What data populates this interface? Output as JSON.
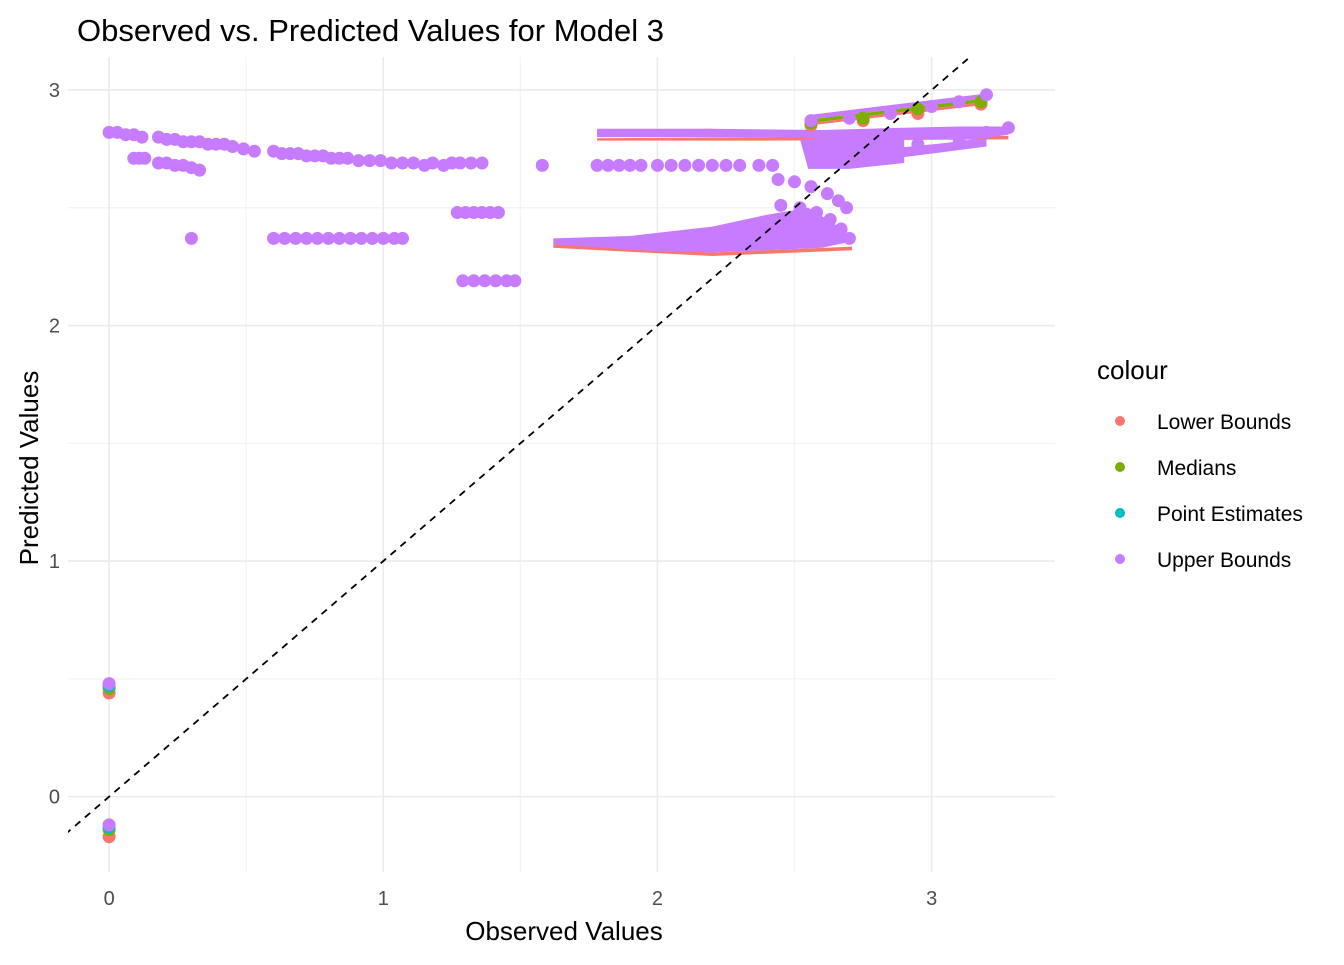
{
  "chart_data": {
    "type": "scatter",
    "title": "Observed vs. Predicted Values for Model 3",
    "xlabel": "Observed Values",
    "ylabel": "Predicted Values",
    "xlim": [
      -0.15,
      3.45
    ],
    "ylim": [
      -0.32,
      3.14
    ],
    "x_ticks": [
      0,
      1,
      2,
      3
    ],
    "y_ticks": [
      0,
      1,
      2,
      3
    ],
    "x_tick_labels": [
      "0",
      "1",
      "2",
      "3"
    ],
    "y_tick_labels": [
      "0",
      "1",
      "2",
      "3"
    ],
    "grid": true,
    "reference_line": {
      "type": "identity",
      "slope": 1,
      "intercept": 0,
      "style": "dashed",
      "color": "#000000"
    },
    "legend": {
      "title": "colour",
      "position": "right",
      "entries": [
        "Lower Bounds",
        "Medians",
        "Point Estimates",
        "Upper Bounds"
      ]
    },
    "series": [
      {
        "name": "Lower Bounds",
        "color": "#F8766D",
        "points": [
          [
            0.0,
            0.44
          ],
          [
            0.0,
            -0.17
          ],
          [
            2.56,
            2.85
          ],
          [
            2.75,
            2.87
          ],
          [
            2.95,
            2.9
          ],
          [
            3.18,
            2.94
          ]
        ]
      },
      {
        "name": "Medians",
        "color": "#7CAE00",
        "points": [
          [
            0.0,
            0.46
          ],
          [
            0.0,
            -0.14
          ],
          [
            2.56,
            2.86
          ],
          [
            2.75,
            2.88
          ],
          [
            2.95,
            2.92
          ],
          [
            3.18,
            2.95
          ]
        ]
      },
      {
        "name": "Point Estimates",
        "color": "#00BFC4",
        "points": [
          [
            0.0,
            0.47
          ],
          [
            0.0,
            -0.13
          ]
        ]
      },
      {
        "name": "Upper Bounds",
        "color": "#C77CFF",
        "points": [
          [
            0.0,
            0.48
          ],
          [
            0.0,
            -0.12
          ],
          [
            0.0,
            2.82
          ],
          [
            0.03,
            2.82
          ],
          [
            0.06,
            2.81
          ],
          [
            0.09,
            2.81
          ],
          [
            0.12,
            2.8
          ],
          [
            0.18,
            2.8
          ],
          [
            0.21,
            2.79
          ],
          [
            0.24,
            2.79
          ],
          [
            0.27,
            2.78
          ],
          [
            0.3,
            2.78
          ],
          [
            0.33,
            2.78
          ],
          [
            0.36,
            2.77
          ],
          [
            0.39,
            2.77
          ],
          [
            0.42,
            2.77
          ],
          [
            0.45,
            2.76
          ],
          [
            0.49,
            2.75
          ],
          [
            0.53,
            2.74
          ],
          [
            0.6,
            2.74
          ],
          [
            0.63,
            2.73
          ],
          [
            0.66,
            2.73
          ],
          [
            0.69,
            2.73
          ],
          [
            0.72,
            2.72
          ],
          [
            0.75,
            2.72
          ],
          [
            0.78,
            2.72
          ],
          [
            0.81,
            2.71
          ],
          [
            0.84,
            2.71
          ],
          [
            0.87,
            2.71
          ],
          [
            0.91,
            2.7
          ],
          [
            0.95,
            2.7
          ],
          [
            0.99,
            2.7
          ],
          [
            1.03,
            2.69
          ],
          [
            1.07,
            2.69
          ],
          [
            1.11,
            2.69
          ],
          [
            1.15,
            2.68
          ],
          [
            1.18,
            2.69
          ],
          [
            1.22,
            2.68
          ],
          [
            1.25,
            2.69
          ],
          [
            1.28,
            2.69
          ],
          [
            1.32,
            2.69
          ],
          [
            1.36,
            2.69
          ],
          [
            0.09,
            2.71
          ],
          [
            0.11,
            2.71
          ],
          [
            0.13,
            2.71
          ],
          [
            0.18,
            2.69
          ],
          [
            0.21,
            2.69
          ],
          [
            0.24,
            2.68
          ],
          [
            0.27,
            2.68
          ],
          [
            0.3,
            2.67
          ],
          [
            0.33,
            2.66
          ],
          [
            0.3,
            2.37
          ],
          [
            0.6,
            2.37
          ],
          [
            0.64,
            2.37
          ],
          [
            0.68,
            2.37
          ],
          [
            0.72,
            2.37
          ],
          [
            0.76,
            2.37
          ],
          [
            0.8,
            2.37
          ],
          [
            0.84,
            2.37
          ],
          [
            0.88,
            2.37
          ],
          [
            0.92,
            2.37
          ],
          [
            0.96,
            2.37
          ],
          [
            1.0,
            2.37
          ],
          [
            1.04,
            2.37
          ],
          [
            1.07,
            2.37
          ],
          [
            1.27,
            2.48
          ],
          [
            1.3,
            2.48
          ],
          [
            1.33,
            2.48
          ],
          [
            1.36,
            2.48
          ],
          [
            1.39,
            2.48
          ],
          [
            1.42,
            2.48
          ],
          [
            1.29,
            2.19
          ],
          [
            1.33,
            2.19
          ],
          [
            1.37,
            2.19
          ],
          [
            1.41,
            2.19
          ],
          [
            1.45,
            2.19
          ],
          [
            1.48,
            2.19
          ],
          [
            1.58,
            2.68
          ],
          [
            1.78,
            2.68
          ],
          [
            1.82,
            2.68
          ],
          [
            1.86,
            2.68
          ],
          [
            1.9,
            2.68
          ],
          [
            1.94,
            2.68
          ],
          [
            2.0,
            2.68
          ],
          [
            2.05,
            2.68
          ],
          [
            2.1,
            2.68
          ],
          [
            2.15,
            2.68
          ],
          [
            2.2,
            2.68
          ],
          [
            2.25,
            2.68
          ],
          [
            2.3,
            2.68
          ],
          [
            2.37,
            2.68
          ],
          [
            2.42,
            2.68
          ],
          [
            2.44,
            2.62
          ],
          [
            2.5,
            2.61
          ],
          [
            2.56,
            2.59
          ],
          [
            2.62,
            2.56
          ],
          [
            2.66,
            2.53
          ],
          [
            2.69,
            2.5
          ],
          [
            2.45,
            2.51
          ],
          [
            2.52,
            2.5
          ],
          [
            2.58,
            2.48
          ],
          [
            2.63,
            2.45
          ],
          [
            2.67,
            2.41
          ],
          [
            2.7,
            2.37
          ],
          [
            2.56,
            2.87
          ],
          [
            2.7,
            2.88
          ],
          [
            2.85,
            2.9
          ],
          [
            3.0,
            2.93
          ],
          [
            3.1,
            2.95
          ],
          [
            3.2,
            2.98
          ],
          [
            2.62,
            2.74
          ],
          [
            2.8,
            2.75
          ],
          [
            2.95,
            2.77
          ],
          [
            3.1,
            2.79
          ],
          [
            3.2,
            2.82
          ],
          [
            3.28,
            2.84
          ]
        ]
      }
    ]
  }
}
